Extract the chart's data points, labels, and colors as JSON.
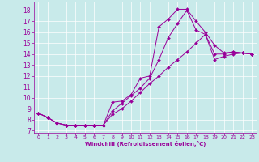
{
  "xlabel": "Windchill (Refroidissement éolien,°C)",
  "bg_color": "#c8eaea",
  "line_color": "#990099",
  "xlim": [
    -0.5,
    23.5
  ],
  "ylim": [
    6.8,
    18.8
  ],
  "yticks": [
    7,
    8,
    9,
    10,
    11,
    12,
    13,
    14,
    15,
    16,
    17,
    18
  ],
  "xticks": [
    0,
    1,
    2,
    3,
    4,
    5,
    6,
    7,
    8,
    9,
    10,
    11,
    12,
    13,
    14,
    15,
    16,
    17,
    18,
    19,
    20,
    21,
    22,
    23
  ],
  "series1_x": [
    0,
    1,
    2,
    3,
    4,
    5,
    6,
    7,
    8,
    9,
    10,
    11,
    12,
    13,
    14,
    15,
    16,
    17,
    18,
    19,
    20,
    21,
    22,
    23
  ],
  "series1_y": [
    8.6,
    8.2,
    7.7,
    7.5,
    7.5,
    7.5,
    7.5,
    7.5,
    9.6,
    9.7,
    10.3,
    11.8,
    12.0,
    16.5,
    17.2,
    18.1,
    18.1,
    17.0,
    16.0,
    14.8,
    14.1,
    14.2,
    14.1,
    14.0
  ],
  "series2_x": [
    0,
    1,
    2,
    3,
    4,
    5,
    6,
    7,
    8,
    9,
    10,
    11,
    12,
    13,
    14,
    15,
    16,
    17,
    18,
    19,
    20,
    21,
    22,
    23
  ],
  "series2_y": [
    8.6,
    8.2,
    7.7,
    7.5,
    7.5,
    7.5,
    7.5,
    7.5,
    8.8,
    9.5,
    10.2,
    10.9,
    11.8,
    13.5,
    15.5,
    16.8,
    18.0,
    16.2,
    15.8,
    14.0,
    14.0,
    14.2,
    14.1,
    14.0
  ],
  "series3_x": [
    0,
    1,
    2,
    3,
    4,
    5,
    6,
    7,
    8,
    9,
    10,
    11,
    12,
    13,
    14,
    15,
    16,
    17,
    18,
    19,
    20,
    21,
    22,
    23
  ],
  "series3_y": [
    8.6,
    8.2,
    7.7,
    7.5,
    7.5,
    7.5,
    7.5,
    7.5,
    8.5,
    9.0,
    9.7,
    10.5,
    11.3,
    12.0,
    12.8,
    13.5,
    14.2,
    15.0,
    15.8,
    13.5,
    13.8,
    14.0,
    14.1,
    14.0
  ]
}
